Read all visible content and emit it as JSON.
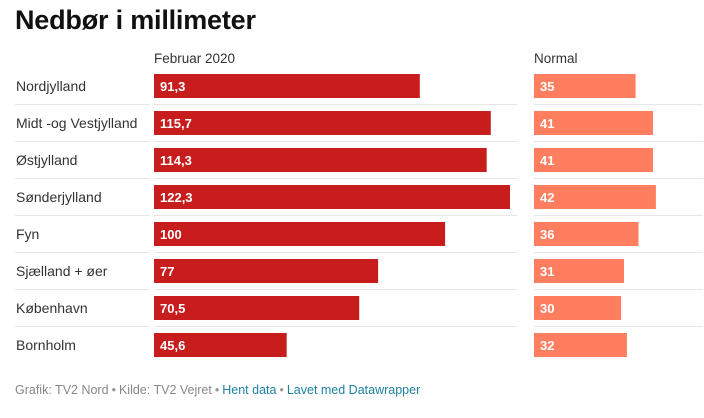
{
  "title": "Nedbør i millimeter",
  "chart_data": {
    "type": "bar",
    "orientation": "horizontal",
    "categories": [
      "Nordjylland",
      "Midt -og Vestjylland",
      "Østjylland",
      "Sønderjylland",
      "Fyn",
      "Sjælland + øer",
      "København",
      "Bornholm"
    ],
    "series": [
      {
        "name": "Februar 2020",
        "values": [
          91.3,
          115.7,
          114.3,
          122.3,
          100,
          77,
          70.5,
          45.6
        ],
        "labels": [
          "91,3",
          "115,7",
          "114,3",
          "122,3",
          "100",
          "77",
          "70,5",
          "45,6"
        ],
        "color": "#c71e1d"
      },
      {
        "name": "Normal",
        "values": [
          35,
          41,
          41,
          42,
          36,
          31,
          30,
          32
        ],
        "labels": [
          "35",
          "41",
          "41",
          "42",
          "36",
          "31",
          "30",
          "32"
        ],
        "color": "#ff7e5f"
      }
    ],
    "xlim": [
      0,
      122.3
    ],
    "grid": "row-dividers"
  },
  "footer": {
    "graphic": "Grafik: TV2 Nord",
    "source": "Kilde: TV2 Vejret",
    "get_data": "Hent data",
    "made_with": "Lavet med Datawrapper"
  }
}
